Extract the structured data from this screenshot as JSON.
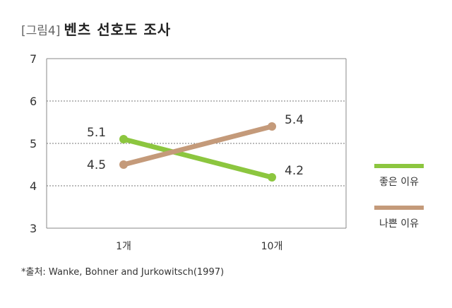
{
  "header": {
    "tag": "[그림4]",
    "title": "벤츠 선호도 조사"
  },
  "chart_data": {
    "type": "line",
    "categories": [
      "1개",
      "10개"
    ],
    "series": [
      {
        "name": "좋은 이유",
        "values": [
          5.1,
          4.2
        ],
        "labels": [
          "5.1",
          "4.2"
        ],
        "color": "#8cc63f"
      },
      {
        "name": "나쁜 이유",
        "values": [
          4.5,
          5.4
        ],
        "labels": [
          "4.5",
          "5.4"
        ],
        "color": "#c49a7a"
      }
    ],
    "ylim": [
      3,
      7
    ],
    "yticks": [
      "3",
      "4",
      "5",
      "6",
      "7"
    ],
    "grid": true,
    "legend_position": "right"
  },
  "footer": {
    "source": "*출처: Wanke, Bohner and Jurkowitsch(1997)"
  }
}
